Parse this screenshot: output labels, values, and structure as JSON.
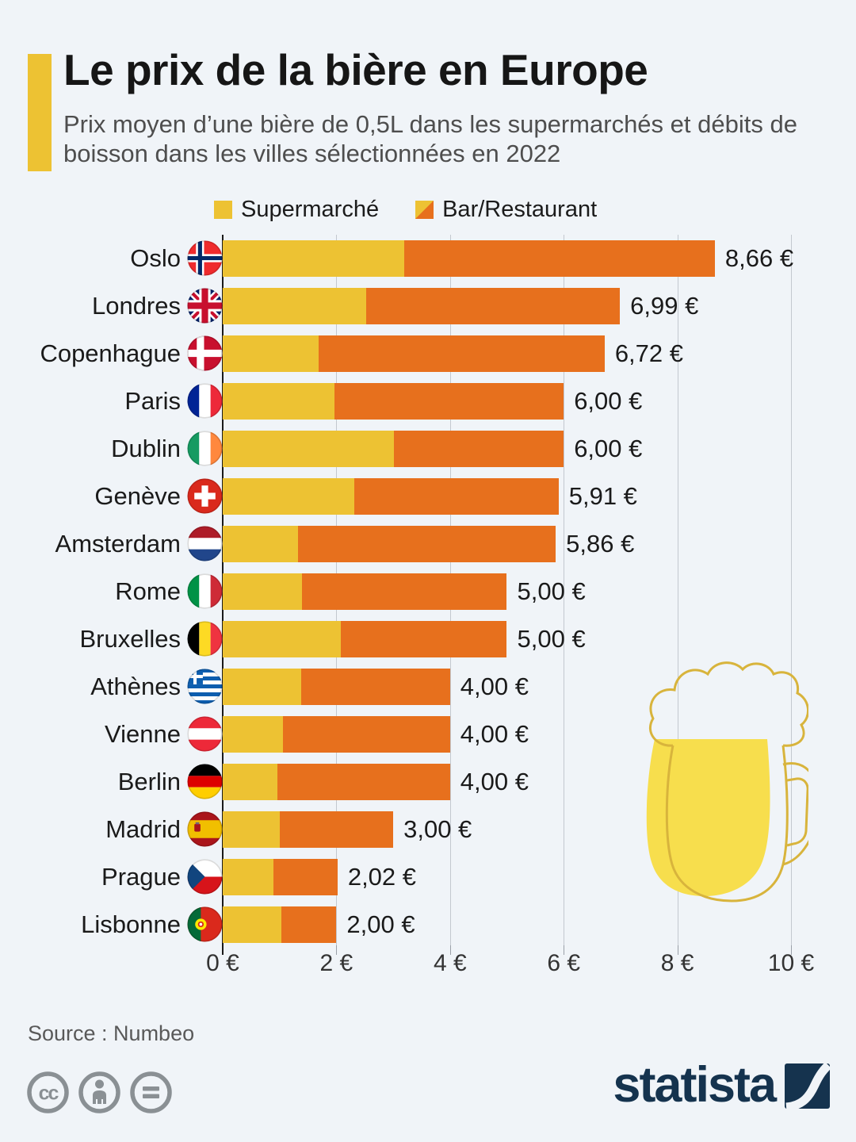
{
  "header": {
    "title": "Le prix de la bière en Europe",
    "subtitle": "Prix moyen d’une bière de 0,5L dans les supermarchés et débits de boisson dans les villes sélectionnées en 2022"
  },
  "chart_data": {
    "type": "bar",
    "orientation": "horizontal",
    "unit": "€",
    "title": "Le prix de la bière en Europe",
    "categories": [
      "Oslo",
      "Londres",
      "Copenhague",
      "Paris",
      "Dublin",
      "Genève",
      "Amsterdam",
      "Rome",
      "Bruxelles",
      "Athènes",
      "Vienne",
      "Berlin",
      "Madrid",
      "Prague",
      "Lisbonne"
    ],
    "flags": [
      "norway",
      "uk",
      "denmark",
      "france",
      "ireland",
      "switzerland",
      "netherlands",
      "italy",
      "belgium",
      "greece",
      "austria",
      "germany",
      "spain",
      "czech",
      "portugal"
    ],
    "series": [
      {
        "name": "Supermarché",
        "color": "#EDC233",
        "values": [
          3.19,
          2.53,
          1.69,
          1.97,
          3.01,
          2.32,
          1.33,
          1.39,
          2.08,
          1.38,
          1.06,
          0.96,
          1.0,
          0.89,
          1.03
        ]
      },
      {
        "name": "Bar/Restaurant",
        "color": "#E7701D",
        "values": [
          8.66,
          6.99,
          6.72,
          6.0,
          6.0,
          5.91,
          5.86,
          5.0,
          5.0,
          4.0,
          4.0,
          4.0,
          3.0,
          2.02,
          2.0
        ]
      }
    ],
    "value_labels": [
      "8,66 €",
      "6,99 €",
      "6,72 €",
      "6,00 €",
      "6,00 €",
      "5,91 €",
      "5,86 €",
      "5,00 €",
      "5,00 €",
      "4,00 €",
      "4,00 €",
      "4,00 €",
      "3,00 €",
      "2,02 €",
      "2,00 €"
    ],
    "x_ticks": [
      "0 €",
      "2 €",
      "4 €",
      "6 €",
      "8 €",
      "10 €"
    ],
    "x_tick_values": [
      0,
      2,
      4,
      6,
      8,
      10
    ],
    "gridlines_at": [
      2,
      4,
      6,
      8,
      10
    ],
    "xlim": [
      0,
      10
    ],
    "legend_position": "top"
  },
  "colors": {
    "background": "#F0F4F8",
    "supermarket_yellow": "#EDC233",
    "bar_orange": "#E7701D",
    "beer_fill": "#F7DE4D",
    "beer_outline": "#D8B43C",
    "statista_navy": "#15334E",
    "grid_grey": "#C3C8CF"
  },
  "icons": {
    "legend_supermarket": "yellow-square-swatch",
    "legend_bar": "diagonal-yellow-orange-swatch",
    "footer_left": [
      "cc-icon",
      "cc-by-person-icon",
      "cc-nd-equals-icon"
    ],
    "illustration": "beer-mug-icon",
    "brand_mark": "statista-logo-mark"
  },
  "footer": {
    "source": "Source : Numbeo",
    "brand": "statista"
  }
}
